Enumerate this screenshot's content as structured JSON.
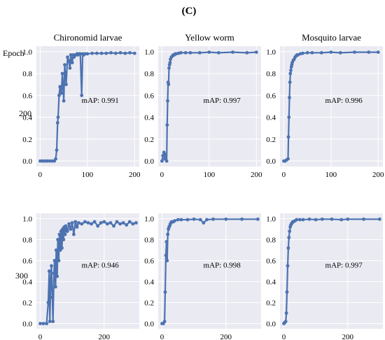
{
  "panel_label": "(C)",
  "row_header": "Epoch",
  "chart_data": [
    {
      "type": "line",
      "title": "Chironomid larvae",
      "row_label": "200",
      "annotation": "mAP: 0.991",
      "xlim": [
        -8,
        210
      ],
      "ylim": [
        -0.05,
        1.05
      ],
      "xticks": [
        0,
        100,
        200
      ],
      "yticks": [
        0.0,
        0.2,
        0.4,
        0.6,
        0.8,
        1.0
      ],
      "series": [
        {
          "color": "#4c72b0",
          "x": [
            0,
            5,
            10,
            15,
            20,
            25,
            30,
            33,
            35,
            37,
            38,
            40,
            42,
            45,
            47,
            50,
            52,
            55,
            58,
            60,
            63,
            65,
            68,
            70,
            72,
            75,
            78,
            80,
            82,
            85,
            88,
            90,
            92,
            95,
            100,
            110,
            120,
            130,
            140,
            150,
            160,
            170,
            180,
            190,
            200
          ],
          "y": [
            0,
            0,
            0,
            0,
            0,
            0,
            0,
            0.02,
            0.1,
            0.35,
            0.4,
            0.6,
            0.68,
            0.62,
            0.8,
            0.55,
            0.88,
            0.7,
            0.95,
            0.92,
            0.85,
            0.97,
            0.9,
            0.97,
            0.95,
            0.97,
            0.98,
            0.97,
            0.98,
            0.98,
            0.6,
            0.98,
            0.97,
            0.98,
            0.98,
            0.985,
            0.985,
            0.985,
            0.985,
            0.99,
            0.985,
            0.99,
            0.985,
            0.99,
            0.985
          ]
        }
      ]
    },
    {
      "type": "line",
      "title": "Yellow worm",
      "row_label": "",
      "annotation": "mAP: 0.997",
      "xlim": [
        -8,
        210
      ],
      "ylim": [
        -0.05,
        1.05
      ],
      "xticks": [
        0,
        100,
        200
      ],
      "yticks": [
        0.0,
        0.2,
        0.4,
        0.6,
        0.8,
        1.0
      ],
      "series": [
        {
          "color": "#4c72b0",
          "x": [
            0,
            2,
            4,
            6,
            8,
            10,
            11,
            12,
            13,
            14,
            15,
            16,
            17,
            18,
            20,
            22,
            24,
            26,
            28,
            30,
            35,
            40,
            50,
            60,
            80,
            100,
            120,
            150,
            180,
            200
          ],
          "y": [
            0,
            0.05,
            0.08,
            0.02,
            0.06,
            0,
            0.33,
            0.55,
            0.72,
            0.7,
            0.85,
            0.88,
            0.9,
            0.93,
            0.95,
            0.96,
            0.97,
            0.97,
            0.98,
            0.98,
            0.985,
            0.99,
            0.99,
            0.99,
            0.99,
            0.995,
            0.99,
            0.995,
            0.99,
            0.995
          ]
        }
      ]
    },
    {
      "type": "line",
      "title": "Mosquito larvae",
      "row_label": "",
      "annotation": "mAP: 0.996",
      "xlim": [
        -8,
        210
      ],
      "ylim": [
        -0.05,
        1.05
      ],
      "xticks": [
        0,
        100,
        200
      ],
      "yticks": [
        0.0,
        0.2,
        0.4,
        0.6,
        0.8,
        1.0
      ],
      "series": [
        {
          "color": "#4c72b0",
          "x": [
            0,
            3,
            6,
            9,
            10,
            11,
            12,
            13,
            14,
            15,
            16,
            17,
            18,
            20,
            22,
            24,
            26,
            28,
            30,
            35,
            40,
            50,
            60,
            80,
            100,
            120,
            150,
            180,
            200
          ],
          "y": [
            0,
            0,
            0.01,
            0.02,
            0.22,
            0.4,
            0.58,
            0.72,
            0.8,
            0.83,
            0.86,
            0.88,
            0.9,
            0.92,
            0.93,
            0.95,
            0.96,
            0.97,
            0.97,
            0.98,
            0.985,
            0.99,
            0.99,
            0.99,
            0.995,
            0.99,
            0.995,
            0.995,
            0.995
          ]
        }
      ]
    },
    {
      "type": "line",
      "title": "",
      "row_label": "300",
      "annotation": "mAP: 0.946",
      "xlim": [
        -12,
        310
      ],
      "ylim": [
        -0.05,
        1.05
      ],
      "xticks": [
        0,
        200
      ],
      "yticks": [
        0.0,
        0.2,
        0.4,
        0.6,
        0.8,
        1.0
      ],
      "series": [
        {
          "color": "#4c72b0",
          "x": [
            0,
            10,
            20,
            25,
            28,
            30,
            33,
            35,
            38,
            40,
            43,
            45,
            48,
            50,
            53,
            55,
            58,
            60,
            63,
            65,
            68,
            70,
            73,
            75,
            78,
            80,
            85,
            90,
            95,
            100,
            105,
            110,
            115,
            120,
            130,
            140,
            150,
            160,
            170,
            180,
            190,
            200,
            210,
            220,
            230,
            240,
            250,
            260,
            270,
            280,
            290,
            300
          ],
          "y": [
            0,
            0,
            0,
            0.2,
            0.5,
            0.02,
            0.4,
            0.55,
            0.25,
            0.02,
            0.48,
            0.6,
            0.35,
            0.7,
            0.45,
            0.8,
            0.6,
            0.85,
            0.7,
            0.88,
            0.72,
            0.9,
            0.8,
            0.92,
            0.85,
            0.93,
            0.88,
            0.95,
            0.9,
            0.96,
            0.85,
            0.97,
            0.92,
            0.96,
            0.95,
            0.97,
            0.96,
            0.95,
            0.97,
            0.93,
            0.96,
            0.97,
            0.95,
            0.96,
            0.93,
            0.97,
            0.95,
            0.96,
            0.94,
            0.97,
            0.95,
            0.96
          ]
        }
      ]
    },
    {
      "type": "line",
      "title": "",
      "row_label": "",
      "annotation": "mAP: 0.998",
      "xlim": [
        -12,
        310
      ],
      "ylim": [
        -0.05,
        1.05
      ],
      "xticks": [
        0,
        200
      ],
      "yticks": [
        0.0,
        0.2,
        0.4,
        0.6,
        0.8,
        1.0
      ],
      "series": [
        {
          "color": "#4c72b0",
          "x": [
            0,
            4,
            8,
            10,
            12,
            14,
            16,
            18,
            20,
            22,
            24,
            26,
            28,
            30,
            35,
            40,
            50,
            60,
            80,
            100,
            120,
            130,
            140,
            160,
            200,
            250,
            300
          ],
          "y": [
            0,
            0,
            0.02,
            0.3,
            0.65,
            0.78,
            0.6,
            0.85,
            0.9,
            0.92,
            0.93,
            0.95,
            0.96,
            0.97,
            0.97,
            0.98,
            0.99,
            0.99,
            0.99,
            0.995,
            0.99,
            0.96,
            0.99,
            0.995,
            0.995,
            0.995,
            0.995
          ]
        }
      ]
    },
    {
      "type": "line",
      "title": "",
      "row_label": "",
      "annotation": "mAP: 0.997",
      "xlim": [
        -12,
        310
      ],
      "ylim": [
        -0.05,
        1.05
      ],
      "xticks": [
        0,
        200
      ],
      "yticks": [
        0.0,
        0.2,
        0.4,
        0.6,
        0.8,
        1.0
      ],
      "series": [
        {
          "color": "#4c72b0",
          "x": [
            0,
            3,
            6,
            8,
            10,
            12,
            14,
            16,
            18,
            20,
            22,
            24,
            26,
            28,
            30,
            35,
            40,
            50,
            60,
            80,
            100,
            120,
            150,
            180,
            200,
            250,
            300
          ],
          "y": [
            0,
            0.01,
            0.02,
            0.1,
            0.3,
            0.55,
            0.72,
            0.82,
            0.88,
            0.92,
            0.94,
            0.95,
            0.96,
            0.97,
            0.97,
            0.98,
            0.99,
            0.99,
            0.99,
            0.995,
            0.99,
            0.995,
            0.995,
            0.99,
            0.995,
            0.995,
            0.995
          ]
        }
      ]
    }
  ]
}
